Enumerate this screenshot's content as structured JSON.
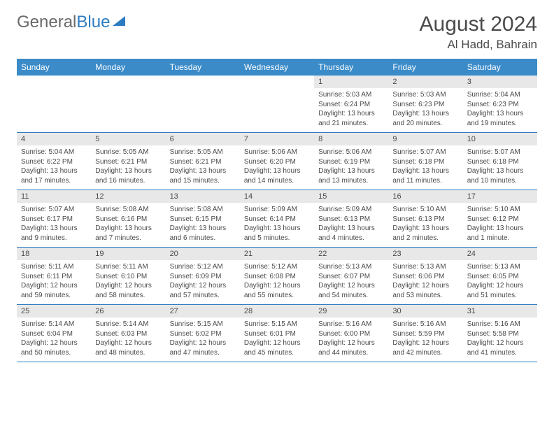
{
  "logo": {
    "general": "General",
    "blue": "Blue"
  },
  "title": "August 2024",
  "location": "Al Hadd, Bahrain",
  "dayNames": [
    "Sunday",
    "Monday",
    "Tuesday",
    "Wednesday",
    "Thursday",
    "Friday",
    "Saturday"
  ],
  "colors": {
    "headerBg": "#3b8bc9",
    "headerText": "#ffffff",
    "daynumBg": "#e8e8e8",
    "borderColor": "#2d7cc1",
    "textColor": "#4a4a4a",
    "logoGray": "#6a6a6a",
    "logoBlue": "#2d7cc1"
  },
  "weeks": [
    [
      {
        "n": "",
        "sr": "",
        "ss": "",
        "dl": ""
      },
      {
        "n": "",
        "sr": "",
        "ss": "",
        "dl": ""
      },
      {
        "n": "",
        "sr": "",
        "ss": "",
        "dl": ""
      },
      {
        "n": "",
        "sr": "",
        "ss": "",
        "dl": ""
      },
      {
        "n": "1",
        "sr": "Sunrise: 5:03 AM",
        "ss": "Sunset: 6:24 PM",
        "dl": "Daylight: 13 hours and 21 minutes."
      },
      {
        "n": "2",
        "sr": "Sunrise: 5:03 AM",
        "ss": "Sunset: 6:23 PM",
        "dl": "Daylight: 13 hours and 20 minutes."
      },
      {
        "n": "3",
        "sr": "Sunrise: 5:04 AM",
        "ss": "Sunset: 6:23 PM",
        "dl": "Daylight: 13 hours and 19 minutes."
      }
    ],
    [
      {
        "n": "4",
        "sr": "Sunrise: 5:04 AM",
        "ss": "Sunset: 6:22 PM",
        "dl": "Daylight: 13 hours and 17 minutes."
      },
      {
        "n": "5",
        "sr": "Sunrise: 5:05 AM",
        "ss": "Sunset: 6:21 PM",
        "dl": "Daylight: 13 hours and 16 minutes."
      },
      {
        "n": "6",
        "sr": "Sunrise: 5:05 AM",
        "ss": "Sunset: 6:21 PM",
        "dl": "Daylight: 13 hours and 15 minutes."
      },
      {
        "n": "7",
        "sr": "Sunrise: 5:06 AM",
        "ss": "Sunset: 6:20 PM",
        "dl": "Daylight: 13 hours and 14 minutes."
      },
      {
        "n": "8",
        "sr": "Sunrise: 5:06 AM",
        "ss": "Sunset: 6:19 PM",
        "dl": "Daylight: 13 hours and 13 minutes."
      },
      {
        "n": "9",
        "sr": "Sunrise: 5:07 AM",
        "ss": "Sunset: 6:18 PM",
        "dl": "Daylight: 13 hours and 11 minutes."
      },
      {
        "n": "10",
        "sr": "Sunrise: 5:07 AM",
        "ss": "Sunset: 6:18 PM",
        "dl": "Daylight: 13 hours and 10 minutes."
      }
    ],
    [
      {
        "n": "11",
        "sr": "Sunrise: 5:07 AM",
        "ss": "Sunset: 6:17 PM",
        "dl": "Daylight: 13 hours and 9 minutes."
      },
      {
        "n": "12",
        "sr": "Sunrise: 5:08 AM",
        "ss": "Sunset: 6:16 PM",
        "dl": "Daylight: 13 hours and 7 minutes."
      },
      {
        "n": "13",
        "sr": "Sunrise: 5:08 AM",
        "ss": "Sunset: 6:15 PM",
        "dl": "Daylight: 13 hours and 6 minutes."
      },
      {
        "n": "14",
        "sr": "Sunrise: 5:09 AM",
        "ss": "Sunset: 6:14 PM",
        "dl": "Daylight: 13 hours and 5 minutes."
      },
      {
        "n": "15",
        "sr": "Sunrise: 5:09 AM",
        "ss": "Sunset: 6:13 PM",
        "dl": "Daylight: 13 hours and 4 minutes."
      },
      {
        "n": "16",
        "sr": "Sunrise: 5:10 AM",
        "ss": "Sunset: 6:13 PM",
        "dl": "Daylight: 13 hours and 2 minutes."
      },
      {
        "n": "17",
        "sr": "Sunrise: 5:10 AM",
        "ss": "Sunset: 6:12 PM",
        "dl": "Daylight: 13 hours and 1 minute."
      }
    ],
    [
      {
        "n": "18",
        "sr": "Sunrise: 5:11 AM",
        "ss": "Sunset: 6:11 PM",
        "dl": "Daylight: 12 hours and 59 minutes."
      },
      {
        "n": "19",
        "sr": "Sunrise: 5:11 AM",
        "ss": "Sunset: 6:10 PM",
        "dl": "Daylight: 12 hours and 58 minutes."
      },
      {
        "n": "20",
        "sr": "Sunrise: 5:12 AM",
        "ss": "Sunset: 6:09 PM",
        "dl": "Daylight: 12 hours and 57 minutes."
      },
      {
        "n": "21",
        "sr": "Sunrise: 5:12 AM",
        "ss": "Sunset: 6:08 PM",
        "dl": "Daylight: 12 hours and 55 minutes."
      },
      {
        "n": "22",
        "sr": "Sunrise: 5:13 AM",
        "ss": "Sunset: 6:07 PM",
        "dl": "Daylight: 12 hours and 54 minutes."
      },
      {
        "n": "23",
        "sr": "Sunrise: 5:13 AM",
        "ss": "Sunset: 6:06 PM",
        "dl": "Daylight: 12 hours and 53 minutes."
      },
      {
        "n": "24",
        "sr": "Sunrise: 5:13 AM",
        "ss": "Sunset: 6:05 PM",
        "dl": "Daylight: 12 hours and 51 minutes."
      }
    ],
    [
      {
        "n": "25",
        "sr": "Sunrise: 5:14 AM",
        "ss": "Sunset: 6:04 PM",
        "dl": "Daylight: 12 hours and 50 minutes."
      },
      {
        "n": "26",
        "sr": "Sunrise: 5:14 AM",
        "ss": "Sunset: 6:03 PM",
        "dl": "Daylight: 12 hours and 48 minutes."
      },
      {
        "n": "27",
        "sr": "Sunrise: 5:15 AM",
        "ss": "Sunset: 6:02 PM",
        "dl": "Daylight: 12 hours and 47 minutes."
      },
      {
        "n": "28",
        "sr": "Sunrise: 5:15 AM",
        "ss": "Sunset: 6:01 PM",
        "dl": "Daylight: 12 hours and 45 minutes."
      },
      {
        "n": "29",
        "sr": "Sunrise: 5:16 AM",
        "ss": "Sunset: 6:00 PM",
        "dl": "Daylight: 12 hours and 44 minutes."
      },
      {
        "n": "30",
        "sr": "Sunrise: 5:16 AM",
        "ss": "Sunset: 5:59 PM",
        "dl": "Daylight: 12 hours and 42 minutes."
      },
      {
        "n": "31",
        "sr": "Sunrise: 5:16 AM",
        "ss": "Sunset: 5:58 PM",
        "dl": "Daylight: 12 hours and 41 minutes."
      }
    ]
  ]
}
